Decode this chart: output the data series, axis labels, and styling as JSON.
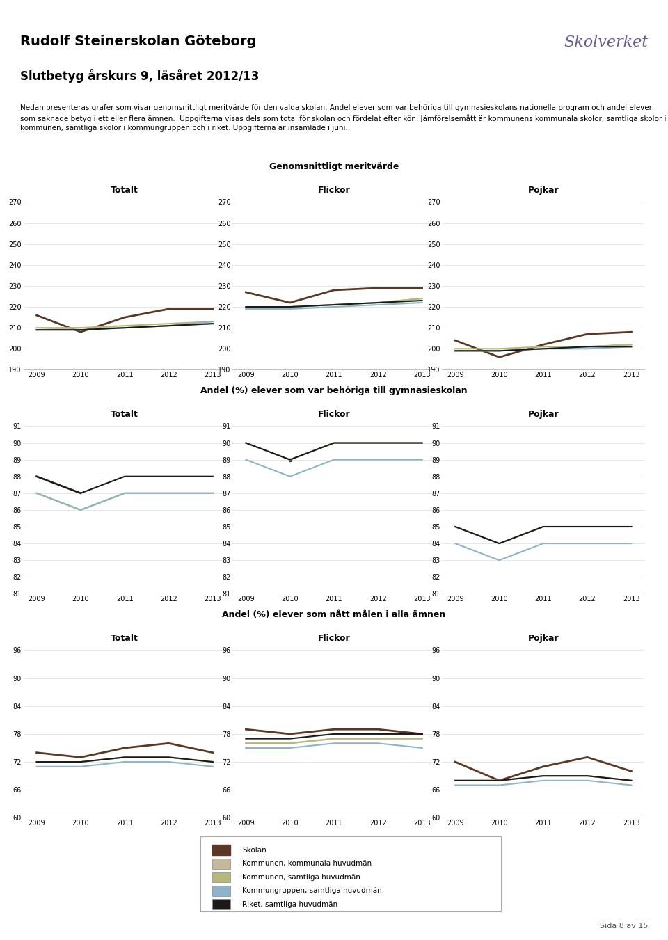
{
  "title_school": "Rudolf Steinerskolan Göteborg",
  "title_report": "Slutbetyg årskurs 9, läsåret 2012/13",
  "body_text": "Nedan presenteras grafer som visar genomsnittligt meritvärde för den valda skolan, Andel elever som var behöriga till gymnasieskolans nationella program och andel elever som saknade betyg i ett eller flera ämnen.  Uppgifterna visas dels som total för skolan och fördelat efter kön. Jämförelsemått är kommunens kommunala skolor, samtliga skolor i kommunen, samtliga skolor i kommungruppen och i riket. Uppgifterna är insamlade i juni.",
  "years": [
    2009,
    2010,
    2011,
    2012,
    2013
  ],
  "section1_title": "Genomsnittligt meritvärde",
  "section2_title": "Andel (%) elever som var behöriga till gymnasieskolan",
  "section3_title": "Andel (%) elever som nått målen i alla ämnen",
  "col_titles": [
    "Totalt",
    "Flickor",
    "Pojkar"
  ],
  "merit_totalt_skolan": [
    216,
    208,
    215,
    219,
    219
  ],
  "merit_totalt_kom_kom": [
    209,
    210,
    210,
    211,
    212
  ],
  "merit_totalt_kom_samt": [
    210,
    210,
    211,
    212,
    213
  ],
  "merit_totalt_kommgr": [
    209,
    209,
    210,
    211,
    213
  ],
  "merit_totalt_riket": [
    209,
    209,
    210,
    211,
    212
  ],
  "merit_flickor_skolan": [
    227,
    222,
    228,
    229,
    229
  ],
  "merit_flickor_kom_kom": [
    220,
    220,
    221,
    222,
    224
  ],
  "merit_flickor_kom_samt": [
    220,
    220,
    221,
    222,
    224
  ],
  "merit_flickor_kommgr": [
    219,
    219,
    220,
    221,
    222
  ],
  "merit_flickor_riket": [
    220,
    220,
    221,
    222,
    223
  ],
  "merit_pojkar_skolan": [
    204,
    196,
    202,
    207,
    208
  ],
  "merit_pojkar_kom_kom": [
    199,
    199,
    200,
    201,
    202
  ],
  "merit_pojkar_kom_samt": [
    200,
    200,
    201,
    201,
    202
  ],
  "merit_pojkar_kommgr": [
    199,
    199,
    200,
    200,
    201
  ],
  "merit_pojkar_riket": [
    199,
    199,
    200,
    201,
    201
  ],
  "merit_ylim": [
    190,
    270
  ],
  "merit_yticks": [
    190,
    200,
    210,
    220,
    230,
    240,
    250,
    260,
    270
  ],
  "behörig_totalt_skolan": [
    88,
    87,
    null,
    null,
    null
  ],
  "behörig_totalt_kom_kom": [
    87,
    86,
    null,
    null,
    null
  ],
  "behörig_totalt_kom_samt": [
    null,
    null,
    null,
    null,
    null
  ],
  "behörig_totalt_kommgr": [
    null,
    null,
    null,
    null,
    null
  ],
  "behörig_totalt_riket": [
    null,
    null,
    null,
    null,
    null
  ],
  "behörig_flickor_skolan": [
    null,
    89,
    null,
    null,
    null
  ],
  "behörig_flickor_kom_kom": [
    null,
    null,
    null,
    null,
    null
  ],
  "behörig_flickor_kom_samt": [
    null,
    null,
    null,
    null,
    null
  ],
  "behörig_flickor_kommgr": [
    null,
    null,
    null,
    null,
    null
  ],
  "behörig_flickor_riket": [
    null,
    null,
    null,
    null,
    null
  ],
  "behörig_pojkar_skolan": [
    null,
    null,
    null,
    null,
    null
  ],
  "behörig_pojkar_kom_kom": [
    null,
    null,
    null,
    null,
    null
  ],
  "behörig_pojkar_kom_samt": [
    null,
    null,
    null,
    null,
    null
  ],
  "behörig_pojkar_kommgr": [
    null,
    null,
    null,
    null,
    null
  ],
  "behörig_pojkar_riket": [
    null,
    null,
    null,
    null,
    null
  ],
  "behörig_ylim": [
    81,
    91
  ],
  "behörig_yticks": [
    81,
    82,
    83,
    84,
    85,
    86,
    87,
    88,
    89,
    90,
    91
  ],
  "mål_totalt_skolan": [
    74,
    73,
    75,
    76,
    74
  ],
  "mål_totalt_kom_kom": [
    72,
    72,
    73,
    73,
    72
  ],
  "mål_totalt_kom_samt": [
    72,
    72,
    73,
    73,
    72
  ],
  "mål_totalt_kommgr": [
    71,
    71,
    72,
    72,
    71
  ],
  "mål_totalt_riket": [
    72,
    72,
    73,
    73,
    72
  ],
  "mål_flickor_skolan": [
    79,
    78,
    79,
    79,
    78
  ],
  "mål_flickor_kom_kom": [
    76,
    76,
    77,
    77,
    77
  ],
  "mål_flickor_kom_samt": [
    76,
    76,
    77,
    77,
    77
  ],
  "mål_flickor_kommgr": [
    75,
    75,
    76,
    76,
    75
  ],
  "mål_flickor_riket": [
    77,
    77,
    78,
    78,
    78
  ],
  "mål_pojkar_skolan": [
    72,
    68,
    71,
    73,
    70
  ],
  "mål_pojkar_kom_kom": [
    68,
    68,
    69,
    69,
    68
  ],
  "mål_pojkar_kom_samt": [
    68,
    68,
    69,
    69,
    68
  ],
  "mål_pojkar_kommgr": [
    67,
    67,
    68,
    68,
    67
  ],
  "mål_pojkar_riket": [
    68,
    68,
    69,
    69,
    68
  ],
  "mål_ylim": [
    60,
    96
  ],
  "mål_yticks": [
    60,
    66,
    72,
    78,
    84,
    90,
    96
  ],
  "color_skolan": "#5a3825",
  "color_kom_kom": "#c8b89a",
  "color_kom_samt": "#b5b87a",
  "color_kommgr": "#8db4c8",
  "color_riket": "#1a1a1a",
  "legend_labels": [
    "Skolan",
    "Kommunen, kommunala huvudmän",
    "Kommunen, samtliga huvudmän",
    "Kommungruppen, samtliga huvudmän",
    "Riket, samtliga huvudmän"
  ],
  "page_note": "Sida 8 av 15"
}
